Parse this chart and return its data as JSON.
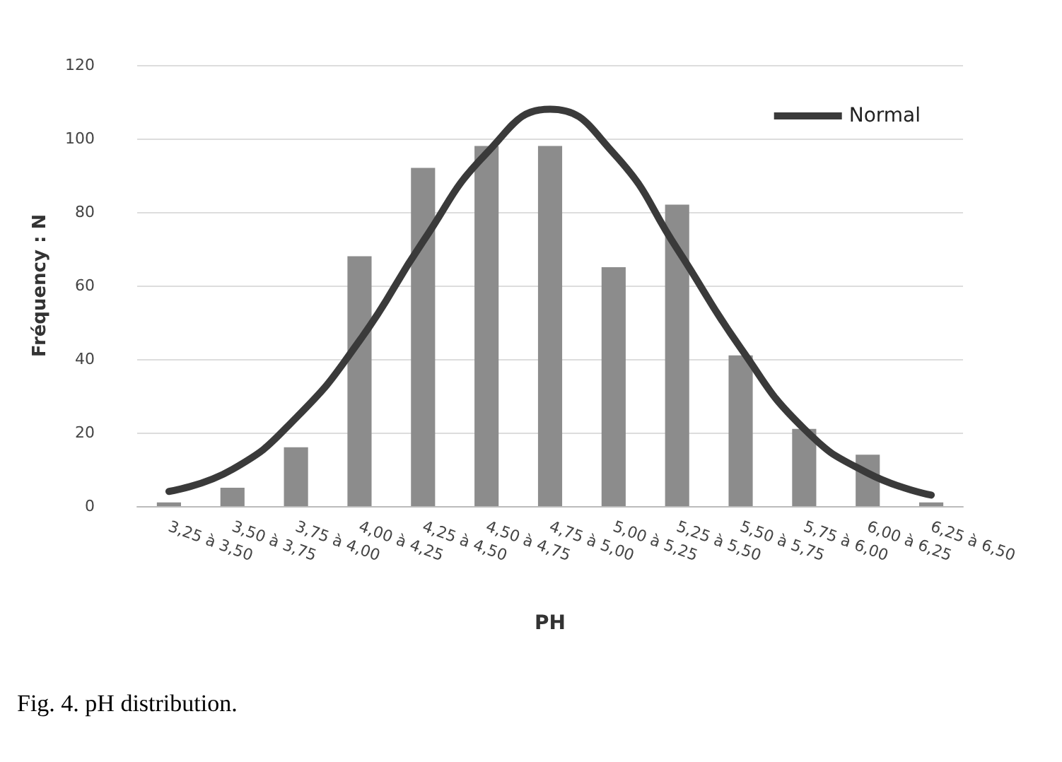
{
  "chart_data": {
    "type": "bar",
    "xlabel": "PH",
    "ylabel": "Fréquency : N",
    "categories": [
      "3,25 à 3,50",
      "3,50 à 3,75",
      "3,75 à 4,00",
      "4,00 à 4,25",
      "4,25 à 4,50",
      "4,50 à 4,75",
      "4,75 à 5,00",
      "5,00 à 5,25",
      "5,25 à 5,50",
      "5,50 à 5,75",
      "5,75 à 6,00",
      "6,00 à 6,25",
      "6,25 à 6,50"
    ],
    "series": [
      {
        "color": "#8c8c8c",
        "values": [
          1,
          5,
          16,
          68,
          92,
          98,
          98,
          65,
          82,
          41,
          21,
          14,
          1
        ]
      },
      {
        "type": "line",
        "name": "Normal",
        "color": "#3a3a3a",
        "values": [
          4,
          10,
          24,
          45,
          72,
          96,
          108,
          96,
          70,
          43,
          21,
          9,
          3
        ]
      }
    ],
    "ylim": [
      0,
      120
    ],
    "yticks": [
      0,
      20,
      40,
      60,
      80,
      100,
      120
    ],
    "grid": "y",
    "legend": "top right",
    "marker": "none",
    "annotations": [
      "Fig. 4. pH distribution."
    ]
  }
}
